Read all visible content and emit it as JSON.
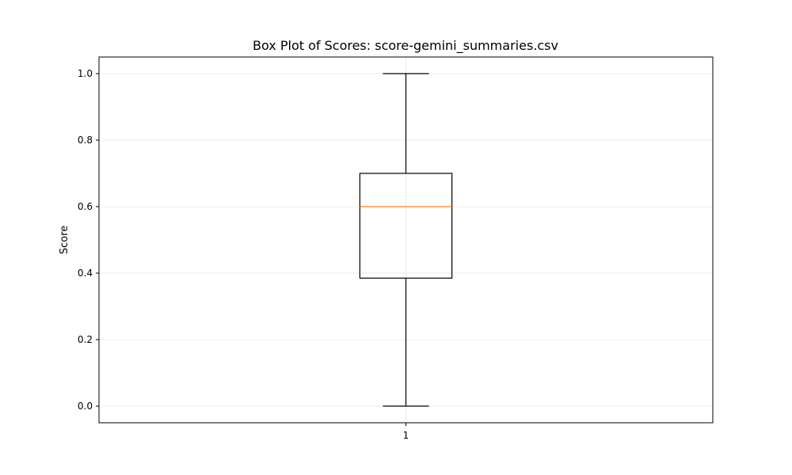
{
  "chart_data": {
    "type": "box",
    "title": "Box Plot of Scores: score-gemini_summaries.csv",
    "xlabel": "",
    "ylabel": "Score",
    "ylim": [
      -0.05,
      1.05
    ],
    "yticks": [
      0.0,
      0.2,
      0.4,
      0.6,
      0.8,
      1.0
    ],
    "ytick_labels": [
      "0.0",
      "0.2",
      "0.4",
      "0.6",
      "0.8",
      "1.0"
    ],
    "categories": [
      "1"
    ],
    "grid": true,
    "boxes": [
      {
        "category": "1",
        "whisker_low": 0.0,
        "q1": 0.385,
        "median": 0.6,
        "q3": 0.7,
        "whisker_high": 1.0
      }
    ],
    "colors": {
      "box": "#000000",
      "median": "#ff7f0e",
      "grid": "#e6e6e6",
      "axes": "#000000"
    }
  }
}
